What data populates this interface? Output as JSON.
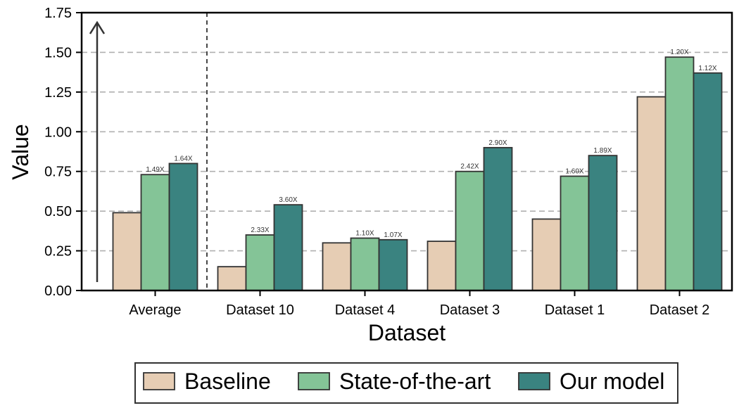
{
  "chart_data": {
    "type": "bar",
    "title": "",
    "xlabel": "Dataset",
    "ylabel": "Value",
    "ylim": [
      0,
      1.75
    ],
    "yticks": [
      "0.00",
      "0.25",
      "0.50",
      "0.75",
      "1.00",
      "1.25",
      "1.50",
      "1.75"
    ],
    "grid": "horizontal dashed",
    "legend_position": "bottom-center",
    "categories": [
      "Average",
      "Dataset 10",
      "Dataset 4",
      "Dataset 3",
      "Dataset 1",
      "Dataset 2"
    ],
    "series": [
      {
        "name": "Baseline",
        "color": "#e6cdb4",
        "values": [
          0.49,
          0.15,
          0.3,
          0.31,
          0.45,
          1.22
        ],
        "labels": [
          "",
          "",
          "",
          "",
          "",
          ""
        ]
      },
      {
        "name": "State-of-the-art",
        "color": "#84c497",
        "values": [
          0.73,
          0.35,
          0.33,
          0.75,
          0.72,
          1.47
        ],
        "labels": [
          "1.49X",
          "2.33X",
          "1.10X",
          "2.42X",
          "1.60X",
          "1.20X"
        ]
      },
      {
        "name": "Our model",
        "color": "#3a8380",
        "values": [
          0.8,
          0.54,
          0.32,
          0.9,
          0.85,
          1.37
        ],
        "labels": [
          "1.64X",
          "3.60X",
          "1.07X",
          "2.90X",
          "1.89X",
          "1.12X"
        ]
      }
    ]
  }
}
